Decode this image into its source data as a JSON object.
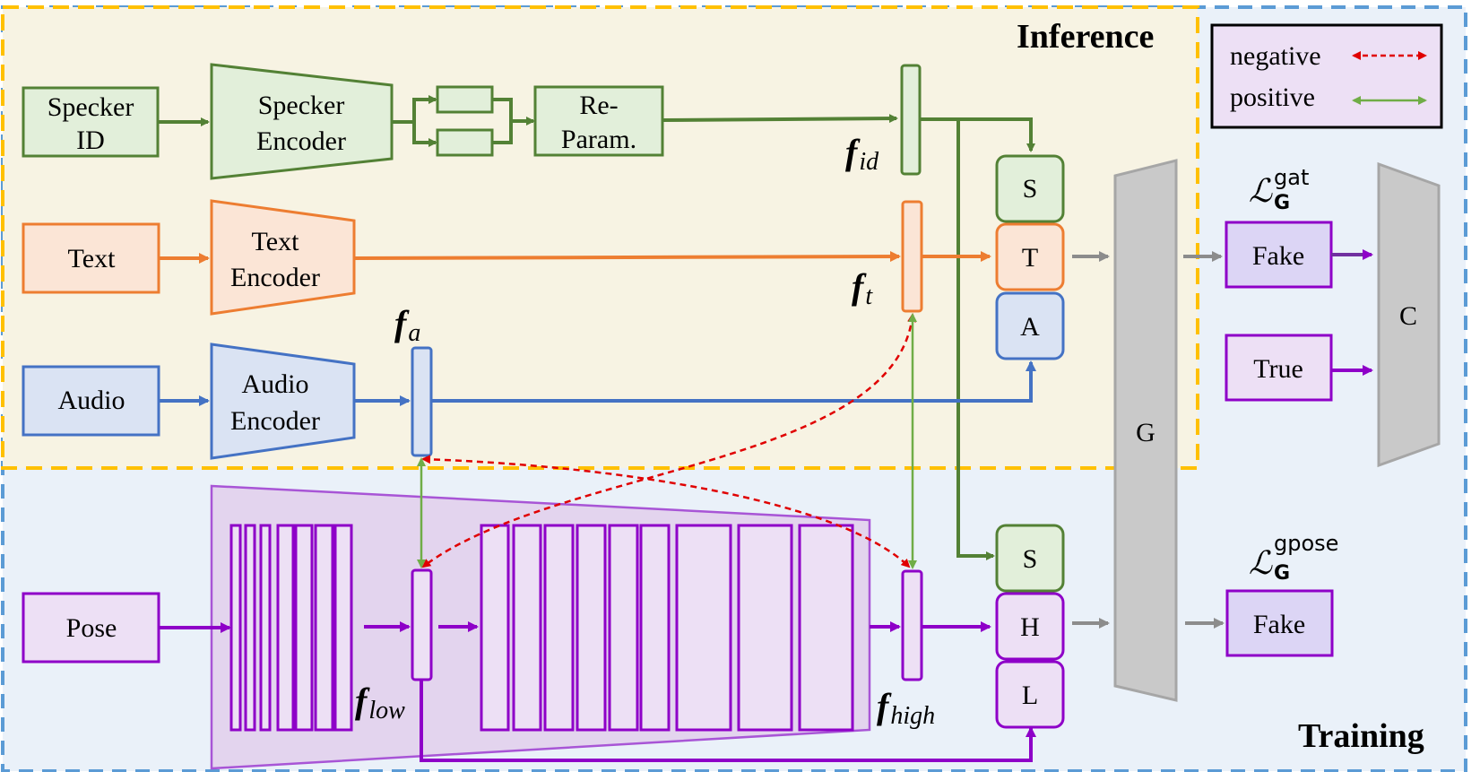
{
  "regions": {
    "inference": "Inference",
    "training": "Training"
  },
  "legend": {
    "negative": "negative",
    "positive": "positive"
  },
  "inputs": {
    "speaker_id": [
      "Specker",
      "ID"
    ],
    "text": "Text",
    "audio": "Audio",
    "pose": "Pose"
  },
  "encoders": {
    "speaker": [
      "Specker",
      "Encoder"
    ],
    "text": [
      "Text",
      "Encoder"
    ],
    "audio": [
      "Audio",
      "Encoder"
    ]
  },
  "reparam": [
    "Re-",
    "Param."
  ],
  "features": {
    "f_id": {
      "base": "f",
      "sub": "id"
    },
    "f_t": {
      "base": "f",
      "sub": "t"
    },
    "f_a": {
      "base": "f",
      "sub": "a"
    },
    "f_low": {
      "base": "f",
      "sub": "low"
    },
    "f_high": {
      "base": "f",
      "sub": "high"
    }
  },
  "concat_top": [
    "S",
    "T",
    "A"
  ],
  "concat_bottom": [
    "S",
    "H",
    "L"
  ],
  "generator": "G",
  "classifier": "C",
  "outputs": {
    "fake_top": "Fake",
    "true": "True",
    "fake_bottom": "Fake"
  },
  "losses": {
    "gat": {
      "symbol": "ℒ",
      "sup": "gat",
      "sub": "G"
    },
    "gpose": {
      "symbol": "ℒ",
      "sup": "gpose",
      "sub": "G"
    }
  },
  "colors": {
    "green": "#538135",
    "green_fill": "#e2efda",
    "orange": "#ed7d31",
    "orange_fill": "#fbe5d6",
    "blue": "#4472c4",
    "blue_fill": "#dae3f3",
    "purple": "#8e00c8",
    "purple_fill": "#ede0f5",
    "gray": "#a6a6a6",
    "gray_fill": "#c9c9c9",
    "inference_border": "#ffc000",
    "inference_bg": "#f7f3e3",
    "training_border": "#5b9bd5",
    "training_bg": "#eaf1f9",
    "negative": "#e00000",
    "positive": "#70ad47",
    "legend_fill": "#ede0f5"
  }
}
